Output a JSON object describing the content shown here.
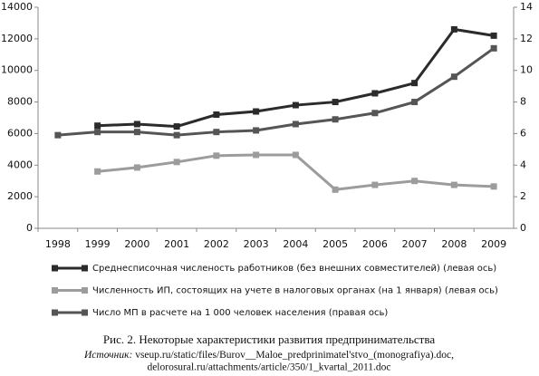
{
  "chart_data": {
    "type": "line",
    "categories": [
      "1998",
      "1999",
      "2000",
      "2001",
      "2002",
      "2003",
      "2004",
      "2005",
      "2006",
      "2007",
      "2008",
      "2009"
    ],
    "series": [
      {
        "name": "Среднесписочная численость работников (без внешних совместителей) (левая ось)",
        "color": "#2b2b2b",
        "values": [
          null,
          6500,
          6600,
          6450,
          7200,
          7400,
          7800,
          8000,
          8550,
          9200,
          12600,
          12200
        ]
      },
      {
        "name": "Численность ИП, состоящих на учете в налоговых органах   (на 1 января) (левая ось)",
        "color": "#9c9c9c",
        "values": [
          null,
          3600,
          3850,
          4200,
          4600,
          4650,
          4650,
          2450,
          2750,
          3000,
          2750,
          2650
        ]
      },
      {
        "name": "Число МП в расчете на 1 000 человек населения (правая ось)",
        "color": "#555555",
        "axis": "y2",
        "values": [
          5.9,
          6.1,
          6.1,
          5.9,
          6.1,
          6.2,
          6.6,
          6.9,
          7.3,
          8.0,
          9.6,
          11.4
        ]
      }
    ],
    "ylim": [
      0,
      14000
    ],
    "yticks": [
      0,
      2000,
      4000,
      6000,
      8000,
      10000,
      12000,
      14000
    ],
    "y2lim": [
      0,
      14
    ],
    "y2ticks": [
      0,
      2,
      4,
      6,
      8,
      10,
      12,
      14
    ],
    "grid": false,
    "caption": "Рис. 2. Некоторые характеристики развития предпринимательства",
    "source_label": "Источник:",
    "source_lines": [
      "vseup.ru/static/files/Burov__Maloe_predprinimatel'stvo_(monografiya).doc,",
      "delorosural.ru/attachments/article/350/1_kvartal_2011.doc"
    ]
  }
}
